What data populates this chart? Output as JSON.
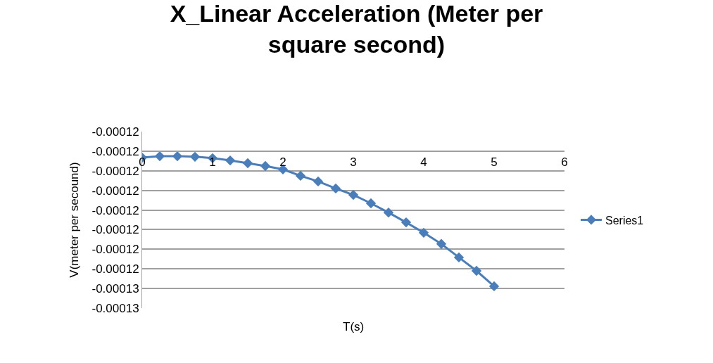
{
  "chart_data": {
    "type": "line",
    "title": "X_Linear Acceleration (Meter per square second)",
    "xlabel": "T(s)",
    "ylabel": "V(meter per secound)",
    "x": [
      0,
      0.25,
      0.5,
      0.75,
      1,
      1.25,
      1.5,
      1.75,
      2,
      2.25,
      2.5,
      2.75,
      3,
      3.25,
      3.5,
      3.75,
      4,
      4.25,
      4.5,
      4.75,
      5
    ],
    "series": [
      {
        "name": "Series1",
        "color": "#4a7ebb",
        "values": [
          -0.00012093,
          -0.00012088,
          -0.00012088,
          -0.0001209,
          -0.00012095,
          -0.00012103,
          -0.00012113,
          -0.00012123,
          -0.00012135,
          -0.00012158,
          -0.00012178,
          -0.00012203,
          -0.00012226,
          -0.00012256,
          -0.00012289,
          -0.00012324,
          -0.00012361,
          -0.00012401,
          -0.00012449,
          -0.00012497,
          -0.00012552
        ]
      }
    ],
    "xlim": [
      0,
      6
    ],
    "xticks": [
      0,
      1,
      2,
      3,
      4,
      5,
      6
    ],
    "ylim": [
      -0.0001263,
      -0.00012
    ],
    "yticks": [
      {
        "value": -0.00012,
        "label": "-0.00012"
      },
      {
        "value": -0.0001207,
        "label": "-0.00012"
      },
      {
        "value": -0.0001214,
        "label": "-0.00012"
      },
      {
        "value": -0.0001221,
        "label": "-0.00012"
      },
      {
        "value": -0.0001228,
        "label": "-0.00012"
      },
      {
        "value": -0.0001235,
        "label": "-0.00012"
      },
      {
        "value": -0.0001242,
        "label": "-0.00012"
      },
      {
        "value": -0.0001249,
        "label": "-0.00012"
      },
      {
        "value": -0.0001256,
        "label": "-0.00013"
      },
      {
        "value": -0.0001263,
        "label": "-0.00013"
      }
    ],
    "grid": "y",
    "legend": "right",
    "marker": "diamond",
    "line_style": "solid"
  }
}
